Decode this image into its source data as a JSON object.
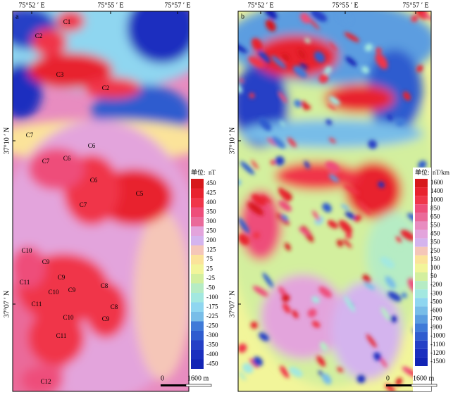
{
  "panels": [
    {
      "label": "a",
      "top_axis": [
        "75°52 ′ E",
        "75°55 ′ E",
        "75°57 ′ E"
      ],
      "left_axis": [
        "37°10 ′ N",
        "37°07 ′ N"
      ],
      "legend": {
        "unit_prefix": "单位:",
        "unit": "nT",
        "levels": [
          450,
          425,
          400,
          350,
          300,
          250,
          200,
          125,
          75,
          25,
          -25,
          -50,
          -100,
          -175,
          -225,
          -250,
          -300,
          -350,
          -400,
          -450
        ]
      },
      "scale": {
        "start": "0",
        "end": "1600 m"
      },
      "annotations": [
        "C1",
        "C2",
        "C3",
        "C2",
        "C7",
        "C6",
        "C7",
        "C6",
        "C6",
        "C5",
        "C7",
        "C10",
        "C9",
        "C11",
        "C9",
        "C10",
        "C9",
        "C8",
        "C11",
        "C8",
        "C10",
        "C9",
        "C11",
        "C12"
      ]
    },
    {
      "label": "b",
      "top_axis": [
        "75°52 ′ E",
        "75°55 ′ E",
        "75°57 ′ E"
      ],
      "left_axis": [
        "37°10 ′ N",
        "37°07 ′ N"
      ],
      "legend": {
        "unit_prefix": "单位:",
        "unit": "nT/km",
        "levels": [
          1600,
          1400,
          1000,
          850,
          650,
          550,
          450,
          350,
          250,
          150,
          100,
          50,
          -200,
          -300,
          -500,
          -600,
          -700,
          -900,
          -1000,
          -1100,
          -1200,
          -1500
        ]
      },
      "scale": {
        "start": "0",
        "end": "1600 m"
      },
      "annotations": []
    }
  ]
}
